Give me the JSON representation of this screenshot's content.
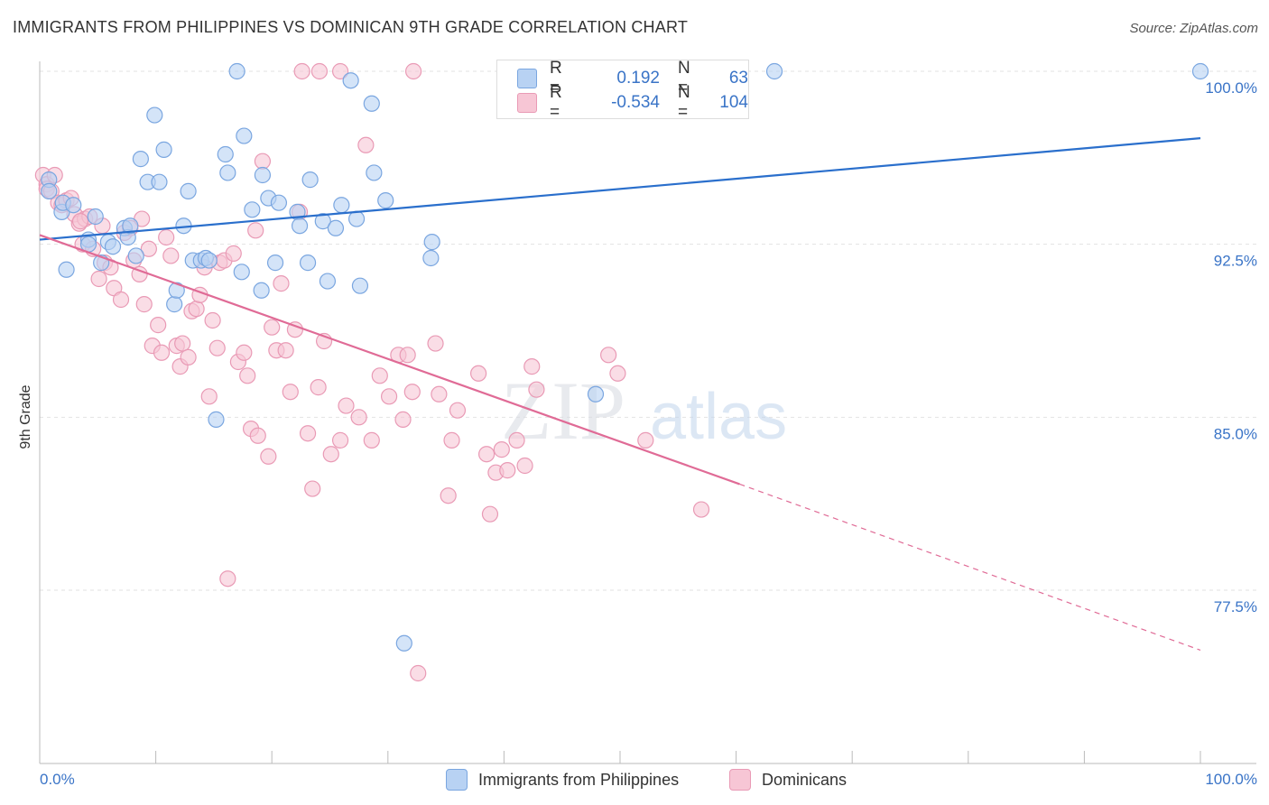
{
  "title": "IMMIGRANTS FROM PHILIPPINES VS DOMINICAN 9TH GRADE CORRELATION CHART",
  "source": "Source: ZipAtlas.com",
  "watermark": {
    "zip": "ZIP",
    "atlas": "atlas"
  },
  "colors": {
    "blue_fill": "#b8d2f3",
    "blue_stroke": "#7aa6e0",
    "blue_line": "#2a6fcc",
    "pink_fill": "#f7c6d5",
    "pink_stroke": "#e99ab5",
    "pink_line": "#e06b96",
    "axis_text": "#3a74c7",
    "grid": "#e2e2e2"
  },
  "legend_top": {
    "rows": [
      {
        "swatch": "blue",
        "r_label": "R =",
        "r_value": "0.192",
        "n_label": "N =",
        "n_value": "63"
      },
      {
        "swatch": "pink",
        "r_label": "R =",
        "r_value": "-0.534",
        "n_label": "N =",
        "n_value": "104"
      }
    ]
  },
  "legend_bottom": [
    {
      "swatch": "blue",
      "label": "Immigrants from Philippines"
    },
    {
      "swatch": "pink",
      "label": "Dominicans"
    }
  ],
  "chart_data": {
    "type": "scatter",
    "xlabel": "",
    "ylabel": "9th Grade",
    "xlim": [
      0,
      100
    ],
    "ylim": [
      71.0,
      101.0
    ],
    "x_tick_labels": [
      "0.0%",
      "100.0%"
    ],
    "y_ticks": [
      77.5,
      85.0,
      92.5,
      100.0
    ],
    "y_tick_labels": [
      "77.5%",
      "85.0%",
      "92.5%",
      "100.0%"
    ],
    "grid": true,
    "series": [
      {
        "name": "Immigrants from Philippines",
        "color": "blue",
        "points": [
          [
            0.8,
            95.3
          ],
          [
            0.8,
            94.8
          ],
          [
            1.9,
            93.9
          ],
          [
            2.0,
            94.3
          ],
          [
            2.9,
            94.2
          ],
          [
            2.3,
            91.4
          ],
          [
            4.2,
            92.7
          ],
          [
            4.2,
            92.5
          ],
          [
            4.8,
            93.7
          ],
          [
            5.3,
            91.7
          ],
          [
            5.9,
            92.6
          ],
          [
            6.3,
            92.4
          ],
          [
            7.3,
            93.2
          ],
          [
            7.6,
            92.8
          ],
          [
            7.8,
            93.3
          ],
          [
            8.3,
            92.0
          ],
          [
            8.7,
            96.2
          ],
          [
            9.3,
            95.2
          ],
          [
            9.9,
            98.1
          ],
          [
            10.3,
            95.2
          ],
          [
            10.7,
            96.6
          ],
          [
            11.6,
            89.9
          ],
          [
            11.8,
            90.5
          ],
          [
            12.4,
            93.3
          ],
          [
            12.8,
            94.8
          ],
          [
            13.2,
            91.8
          ],
          [
            13.9,
            91.8
          ],
          [
            14.3,
            91.9
          ],
          [
            14.6,
            91.8
          ],
          [
            15.2,
            84.9
          ],
          [
            16.0,
            96.4
          ],
          [
            16.2,
            95.6
          ],
          [
            17.0,
            100.0
          ],
          [
            17.4,
            91.3
          ],
          [
            17.6,
            97.2
          ],
          [
            18.3,
            94.0
          ],
          [
            19.2,
            95.5
          ],
          [
            19.1,
            90.5
          ],
          [
            19.7,
            94.5
          ],
          [
            20.3,
            91.7
          ],
          [
            20.6,
            94.3
          ],
          [
            22.2,
            93.9
          ],
          [
            22.4,
            93.3
          ],
          [
            23.1,
            91.7
          ],
          [
            23.3,
            95.3
          ],
          [
            24.4,
            93.5
          ],
          [
            24.8,
            90.9
          ],
          [
            25.5,
            93.2
          ],
          [
            26.0,
            94.2
          ],
          [
            26.8,
            99.6
          ],
          [
            27.3,
            93.6
          ],
          [
            27.6,
            90.7
          ],
          [
            28.6,
            98.6
          ],
          [
            28.8,
            95.6
          ],
          [
            29.8,
            94.4
          ],
          [
            31.4,
            75.2
          ],
          [
            33.8,
            92.6
          ],
          [
            33.7,
            91.9
          ],
          [
            41.4,
            100.0
          ],
          [
            47.9,
            86.0
          ],
          [
            60.2,
            100.0
          ],
          [
            63.3,
            100.0
          ],
          [
            100.0,
            100.0
          ]
        ],
        "trend": {
          "x0": 0,
          "y0": 92.7,
          "x1": 100,
          "y1": 97.1
        }
      },
      {
        "name": "Dominicans",
        "color": "pink",
        "points": [
          [
            0.3,
            95.5
          ],
          [
            0.6,
            95.1
          ],
          [
            0.6,
            94.9
          ],
          [
            1.0,
            94.8
          ],
          [
            1.3,
            95.5
          ],
          [
            1.6,
            94.3
          ],
          [
            1.9,
            94.2
          ],
          [
            2.3,
            94.4
          ],
          [
            2.7,
            94.5
          ],
          [
            3.0,
            93.8
          ],
          [
            3.4,
            93.4
          ],
          [
            3.7,
            92.5
          ],
          [
            3.9,
            93.6
          ],
          [
            4.3,
            93.7
          ],
          [
            4.6,
            92.3
          ],
          [
            5.1,
            91.0
          ],
          [
            5.4,
            93.3
          ],
          [
            5.6,
            91.7
          ],
          [
            6.1,
            91.5
          ],
          [
            6.4,
            90.6
          ],
          [
            7.0,
            90.1
          ],
          [
            7.3,
            93.0
          ],
          [
            7.8,
            93.2
          ],
          [
            8.1,
            91.8
          ],
          [
            8.6,
            91.2
          ],
          [
            8.8,
            93.6
          ],
          [
            9.0,
            89.9
          ],
          [
            9.4,
            92.3
          ],
          [
            9.7,
            88.1
          ],
          [
            10.2,
            89.0
          ],
          [
            10.5,
            87.8
          ],
          [
            10.9,
            92.8
          ],
          [
            11.3,
            92.0
          ],
          [
            11.8,
            88.1
          ],
          [
            12.1,
            87.2
          ],
          [
            12.3,
            88.2
          ],
          [
            12.8,
            87.6
          ],
          [
            13.1,
            89.6
          ],
          [
            13.5,
            89.7
          ],
          [
            13.8,
            90.3
          ],
          [
            14.2,
            91.5
          ],
          [
            14.6,
            85.9
          ],
          [
            14.9,
            89.2
          ],
          [
            15.3,
            88.0
          ],
          [
            15.5,
            91.7
          ],
          [
            15.9,
            91.8
          ],
          [
            16.2,
            78.0
          ],
          [
            16.7,
            92.1
          ],
          [
            17.1,
            87.4
          ],
          [
            17.6,
            87.8
          ],
          [
            17.9,
            86.8
          ],
          [
            18.2,
            84.5
          ],
          [
            18.6,
            93.1
          ],
          [
            18.8,
            84.2
          ],
          [
            19.2,
            96.1
          ],
          [
            19.7,
            83.3
          ],
          [
            20.0,
            88.9
          ],
          [
            20.4,
            87.9
          ],
          [
            20.8,
            90.8
          ],
          [
            21.2,
            87.9
          ],
          [
            21.6,
            86.1
          ],
          [
            22.0,
            88.8
          ],
          [
            22.4,
            93.9
          ],
          [
            23.1,
            84.3
          ],
          [
            23.5,
            81.9
          ],
          [
            24.0,
            86.3
          ],
          [
            24.5,
            88.3
          ],
          [
            25.1,
            83.4
          ],
          [
            25.9,
            84.0
          ],
          [
            26.4,
            85.5
          ],
          [
            27.5,
            85.0
          ],
          [
            28.1,
            96.8
          ],
          [
            28.6,
            84.0
          ],
          [
            29.3,
            86.8
          ],
          [
            30.1,
            85.9
          ],
          [
            30.9,
            87.7
          ],
          [
            31.3,
            84.9
          ],
          [
            31.7,
            87.7
          ],
          [
            32.1,
            86.1
          ],
          [
            32.6,
            73.9
          ],
          [
            34.1,
            88.2
          ],
          [
            34.4,
            86.0
          ],
          [
            35.2,
            81.6
          ],
          [
            35.5,
            84.0
          ],
          [
            36.0,
            85.3
          ],
          [
            37.8,
            86.9
          ],
          [
            38.5,
            83.4
          ],
          [
            38.8,
            80.8
          ],
          [
            39.3,
            82.6
          ],
          [
            39.8,
            83.6
          ],
          [
            40.3,
            82.7
          ],
          [
            41.1,
            84.0
          ],
          [
            41.8,
            82.9
          ],
          [
            42.4,
            87.2
          ],
          [
            42.8,
            86.2
          ],
          [
            49.0,
            87.7
          ],
          [
            49.8,
            86.9
          ],
          [
            52.2,
            84.0
          ],
          [
            57.0,
            81.0
          ],
          [
            22.6,
            100.0
          ],
          [
            24.1,
            100.0
          ],
          [
            25.9,
            100.0
          ],
          [
            32.2,
            100.0
          ],
          [
            3.5,
            93.5
          ]
        ],
        "trend": {
          "x0": 0,
          "y0": 92.9,
          "x1": 60.3,
          "y1": 82.1
        },
        "trend_dashed": {
          "x0": 60.3,
          "y0": 82.1,
          "x1": 100,
          "y1": 74.9
        }
      }
    ]
  }
}
